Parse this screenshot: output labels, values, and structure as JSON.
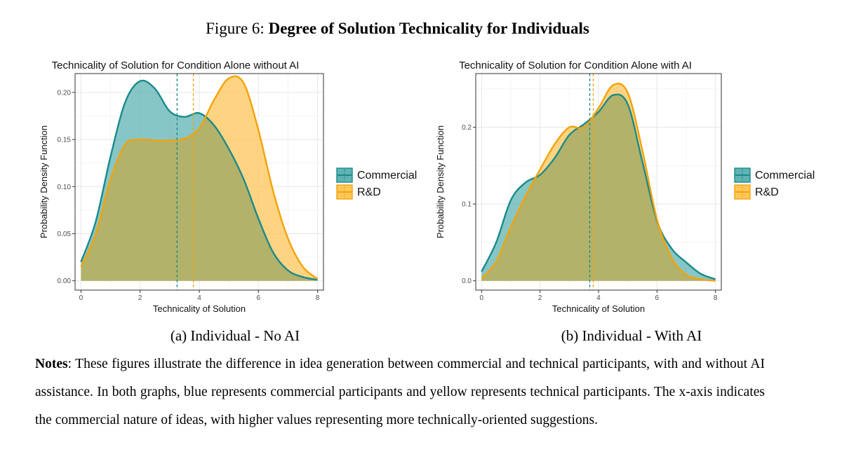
{
  "figure": {
    "label": "Figure 6:",
    "title": "Degree of Solution Technicality for Individuals"
  },
  "notes": {
    "label": "Notes",
    "text": ": These figures illustrate the difference in idea generation between commercial and technical participants, with and without AI assistance. In both graphs, blue represents commercial participants and yellow represents technical participants. The x-axis indicates the commercial nature of ideas, with higher values representing more technically-oriented suggestions."
  },
  "colors": {
    "commercial": "#1a8a8a",
    "commercial_fill": "#5fb3b3",
    "rd": "#f5a20a",
    "rd_fill": "#fdc65a",
    "overlap_fill": "#b2b26a"
  },
  "chart_data": [
    {
      "type": "area",
      "title": "Technicality of Solution for Condition Alone without AI",
      "caption": "(a) Individual - No AI",
      "xlabel": "Technicality of Solution",
      "ylabel": "Probability Density Function",
      "xlim": [
        0,
        8
      ],
      "ylim": [
        0,
        0.22
      ],
      "xticks": [
        0,
        2,
        4,
        6,
        8
      ],
      "yticks": [
        0.0,
        0.05,
        0.1,
        0.15,
        0.2
      ],
      "ytick_labels": [
        "0.00",
        "0.05",
        "0.10",
        "0.15",
        "0.20"
      ],
      "grid": true,
      "legend_position": "right",
      "series": [
        {
          "name": "Commercial",
          "x": [
            0,
            0.5,
            1,
            1.5,
            2,
            2.5,
            3,
            3.5,
            4,
            4.5,
            5,
            5.5,
            6,
            6.5,
            7,
            7.5,
            8
          ],
          "values": [
            0.02,
            0.063,
            0.132,
            0.19,
            0.212,
            0.204,
            0.18,
            0.174,
            0.178,
            0.165,
            0.14,
            0.108,
            0.066,
            0.03,
            0.011,
            0.004,
            0.001
          ],
          "mean": 3.25
        },
        {
          "name": "R&D",
          "x": [
            0,
            0.5,
            1,
            1.5,
            2,
            2.5,
            3,
            3.5,
            4,
            4.5,
            5,
            5.5,
            6,
            6.5,
            7,
            7.5,
            8
          ],
          "values": [
            0.015,
            0.05,
            0.108,
            0.145,
            0.15,
            0.149,
            0.149,
            0.151,
            0.162,
            0.192,
            0.215,
            0.21,
            0.16,
            0.095,
            0.045,
            0.015,
            0.002
          ],
          "mean": 3.8
        }
      ]
    },
    {
      "type": "area",
      "title": "Technicality of Solution for Condition Alone with AI",
      "caption": "(b) Individual - With AI",
      "xlabel": "Technicality of Solution",
      "ylabel": "Probability Density Function",
      "xlim": [
        0,
        8
      ],
      "ylim": [
        0,
        0.27
      ],
      "xticks": [
        0,
        2,
        4,
        6,
        8
      ],
      "yticks": [
        0.0,
        0.1,
        0.2
      ],
      "ytick_labels": [
        "0.0",
        "0.1",
        "0.2"
      ],
      "grid": true,
      "legend_position": "right",
      "series": [
        {
          "name": "Commercial",
          "x": [
            0,
            0.5,
            1,
            1.5,
            2,
            2.5,
            3,
            3.5,
            4,
            4.5,
            5,
            5.5,
            6,
            6.5,
            7,
            7.5,
            8
          ],
          "values": [
            0.012,
            0.05,
            0.105,
            0.128,
            0.138,
            0.16,
            0.19,
            0.204,
            0.22,
            0.242,
            0.23,
            0.155,
            0.078,
            0.042,
            0.024,
            0.009,
            0.002
          ],
          "mean": 3.7
        },
        {
          "name": "R&D",
          "x": [
            0,
            0.5,
            1,
            1.5,
            2,
            2.5,
            3,
            3.5,
            4,
            4.5,
            5,
            5.5,
            6,
            6.5,
            7,
            7.5,
            8
          ],
          "values": [
            0.003,
            0.025,
            0.07,
            0.11,
            0.145,
            0.178,
            0.2,
            0.2,
            0.225,
            0.255,
            0.245,
            0.17,
            0.08,
            0.03,
            0.008,
            0.002,
            0.0
          ],
          "mean": 3.82
        }
      ]
    }
  ]
}
